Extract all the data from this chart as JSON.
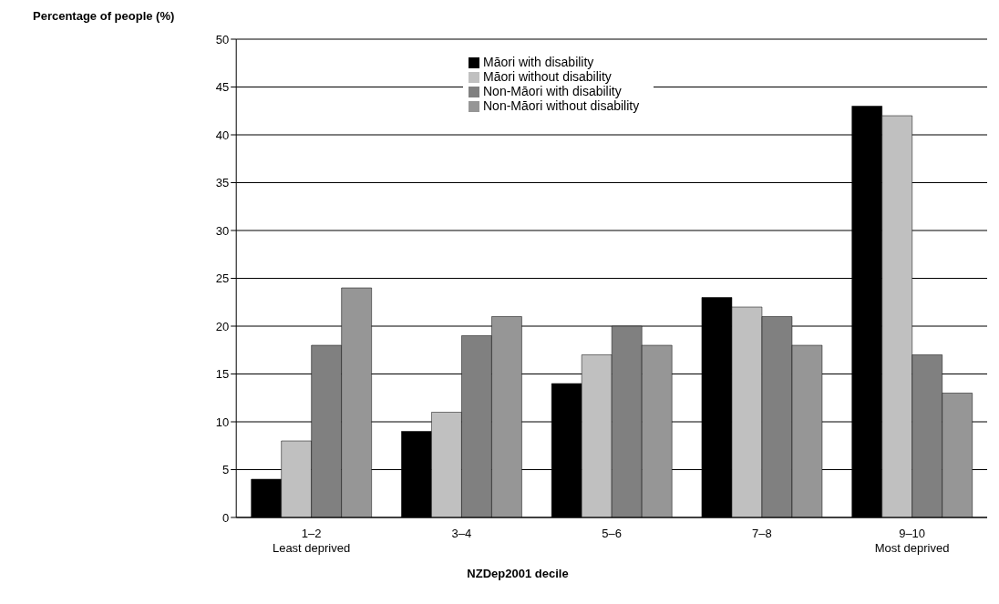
{
  "chart_data": {
    "type": "bar",
    "ylabel": "Percentage of people (%)",
    "xlabel": "NZDep2001 decile",
    "categories": [
      "1–2\nLeast deprived",
      "3–4",
      "5–6",
      "7–8",
      "9–10\nMost deprived"
    ],
    "series": [
      {
        "name": "Māori with disability",
        "color": "#000000",
        "values": [
          4,
          9,
          14,
          23,
          43
        ]
      },
      {
        "name": "Māori without disability",
        "color": "#c0c0c0",
        "values": [
          8,
          11,
          17,
          22,
          42
        ]
      },
      {
        "name": "Non-Māori with disability",
        "color": "#808080",
        "values": [
          18,
          19,
          20,
          21,
          17
        ]
      },
      {
        "name": "Non-Māori without disability",
        "color": "#969696",
        "values": [
          24,
          21,
          18,
          18,
          13
        ]
      }
    ],
    "ylim": [
      0,
      50
    ],
    "yticks": [
      0,
      5,
      10,
      15,
      20,
      25,
      30,
      35,
      40,
      45,
      50
    ],
    "grid": "y",
    "legend": "top"
  }
}
